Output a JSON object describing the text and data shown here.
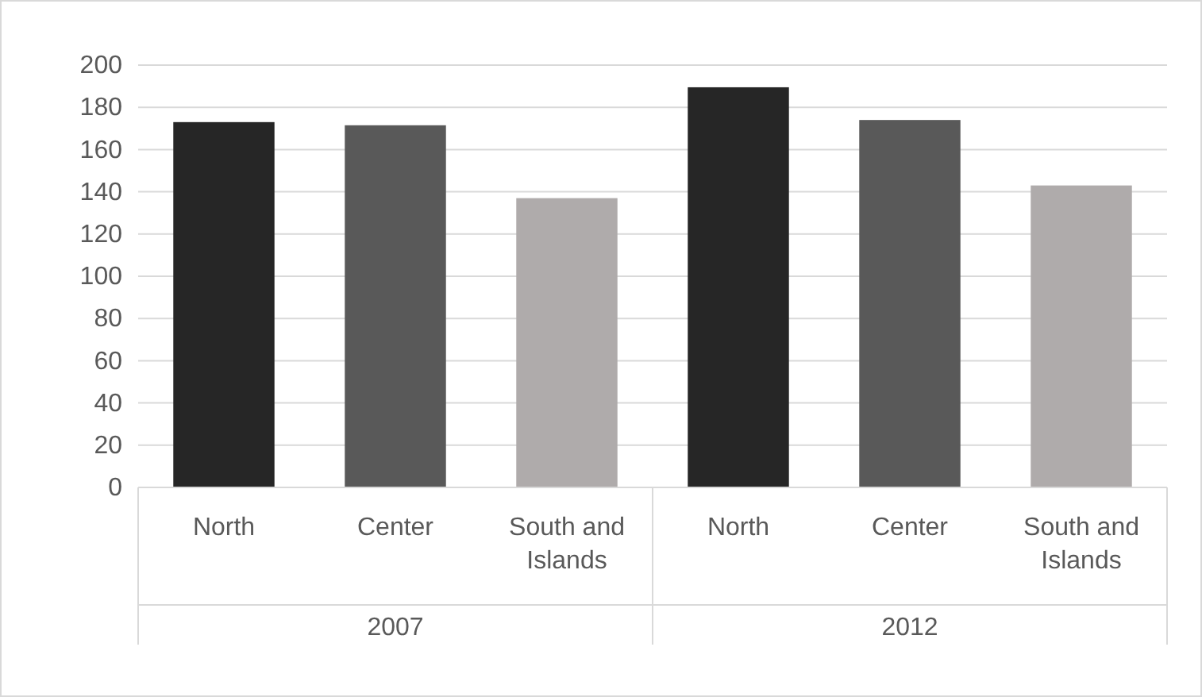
{
  "chart_data": {
    "type": "bar",
    "categories": [
      "North",
      "Center",
      "South and Islands",
      "North",
      "Center",
      "South and Islands"
    ],
    "values": [
      173,
      171.5,
      137,
      189.5,
      174,
      143
    ],
    "colors": [
      "#262626",
      "#595959",
      "#afabab",
      "#262626",
      "#595959",
      "#afabab"
    ],
    "annotations": [
      "2007",
      "2012"
    ],
    "ylim": [
      0,
      200
    ],
    "yticks": [
      0,
      20,
      40,
      60,
      80,
      100,
      120,
      140,
      160,
      180,
      200
    ],
    "grid": "y"
  }
}
